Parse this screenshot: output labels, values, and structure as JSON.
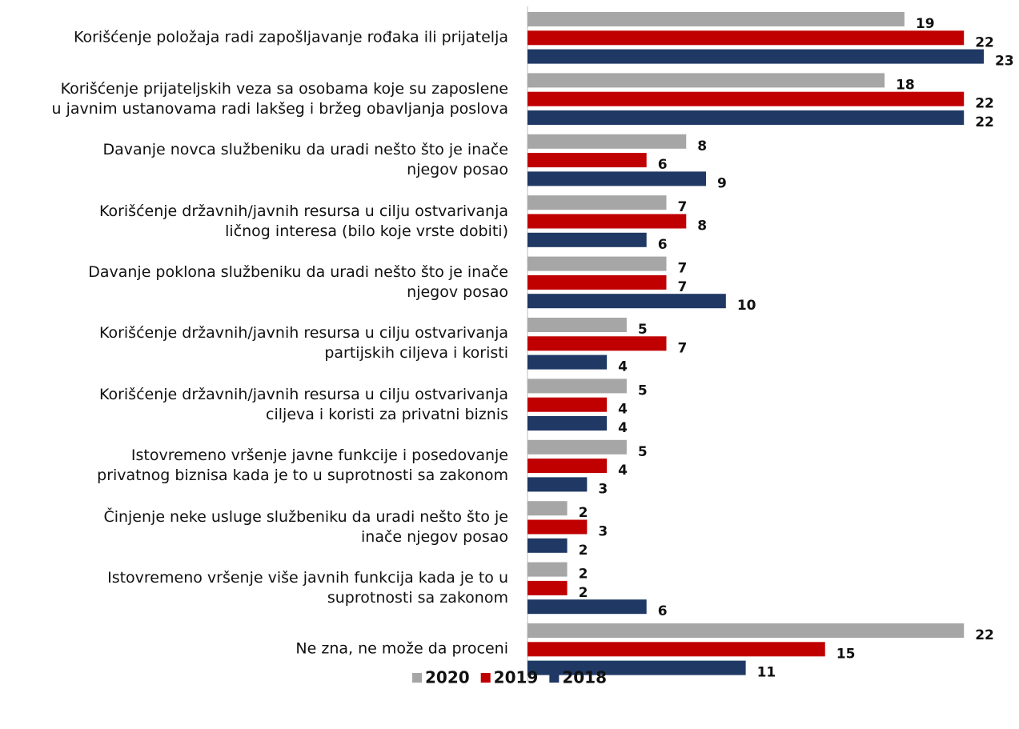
{
  "chart_data": {
    "type": "barh",
    "categories": [
      "Korišćenje položaja radi zapošljavanje rođaka ili prijatelja",
      "Korišćenje prijateljskih veza sa osobama koje su zaposlene\nu javnim ustanovama radi lakšeg i bržeg obavljanja poslova",
      "Davanje novca službeniku da uradi nešto što je inače\nnjegov posao",
      "Korišćenje državnih/javnih resursa u cilju ostvarivanja\nličnog interesa (bilo koje vrste dobiti)",
      "Davanje poklona službeniku da uradi nešto što je inače\nnjegov posao",
      "Korišćenje državnih/javnih resursa u cilju ostvarivanja\npartijskih ciljeva i koristi",
      "Korišćenje državnih/javnih resursa u cilju ostvarivanja\nciljeva i koristi za privatni biznis",
      "Istovremeno vršenje javne funkcije i posedovanje\nprivatnog biznisa kada je to u suprotnosti sa zakonom",
      "Činjenje neke usluge službeniku da uradi nešto što je\ninače njegov posao",
      "Istovremeno vršenje više javnih funkcija kada je to u\nsuprotnosti sa zakonom",
      "Ne zna, ne može da proceni"
    ],
    "series": [
      {
        "name": "2020",
        "color": "#a6a6a6",
        "values": [
          19,
          18,
          8,
          7,
          7,
          5,
          5,
          5,
          2,
          2,
          22
        ]
      },
      {
        "name": "2019",
        "color": "#c00000",
        "values": [
          22,
          22,
          6,
          8,
          7,
          7,
          4,
          4,
          3,
          2,
          15
        ]
      },
      {
        "name": "2018",
        "color": "#1f3864",
        "values": [
          23,
          22,
          9,
          6,
          10,
          4,
          4,
          3,
          2,
          6,
          11
        ]
      }
    ],
    "xlim": [
      0,
      23
    ],
    "legend": "bottom"
  }
}
